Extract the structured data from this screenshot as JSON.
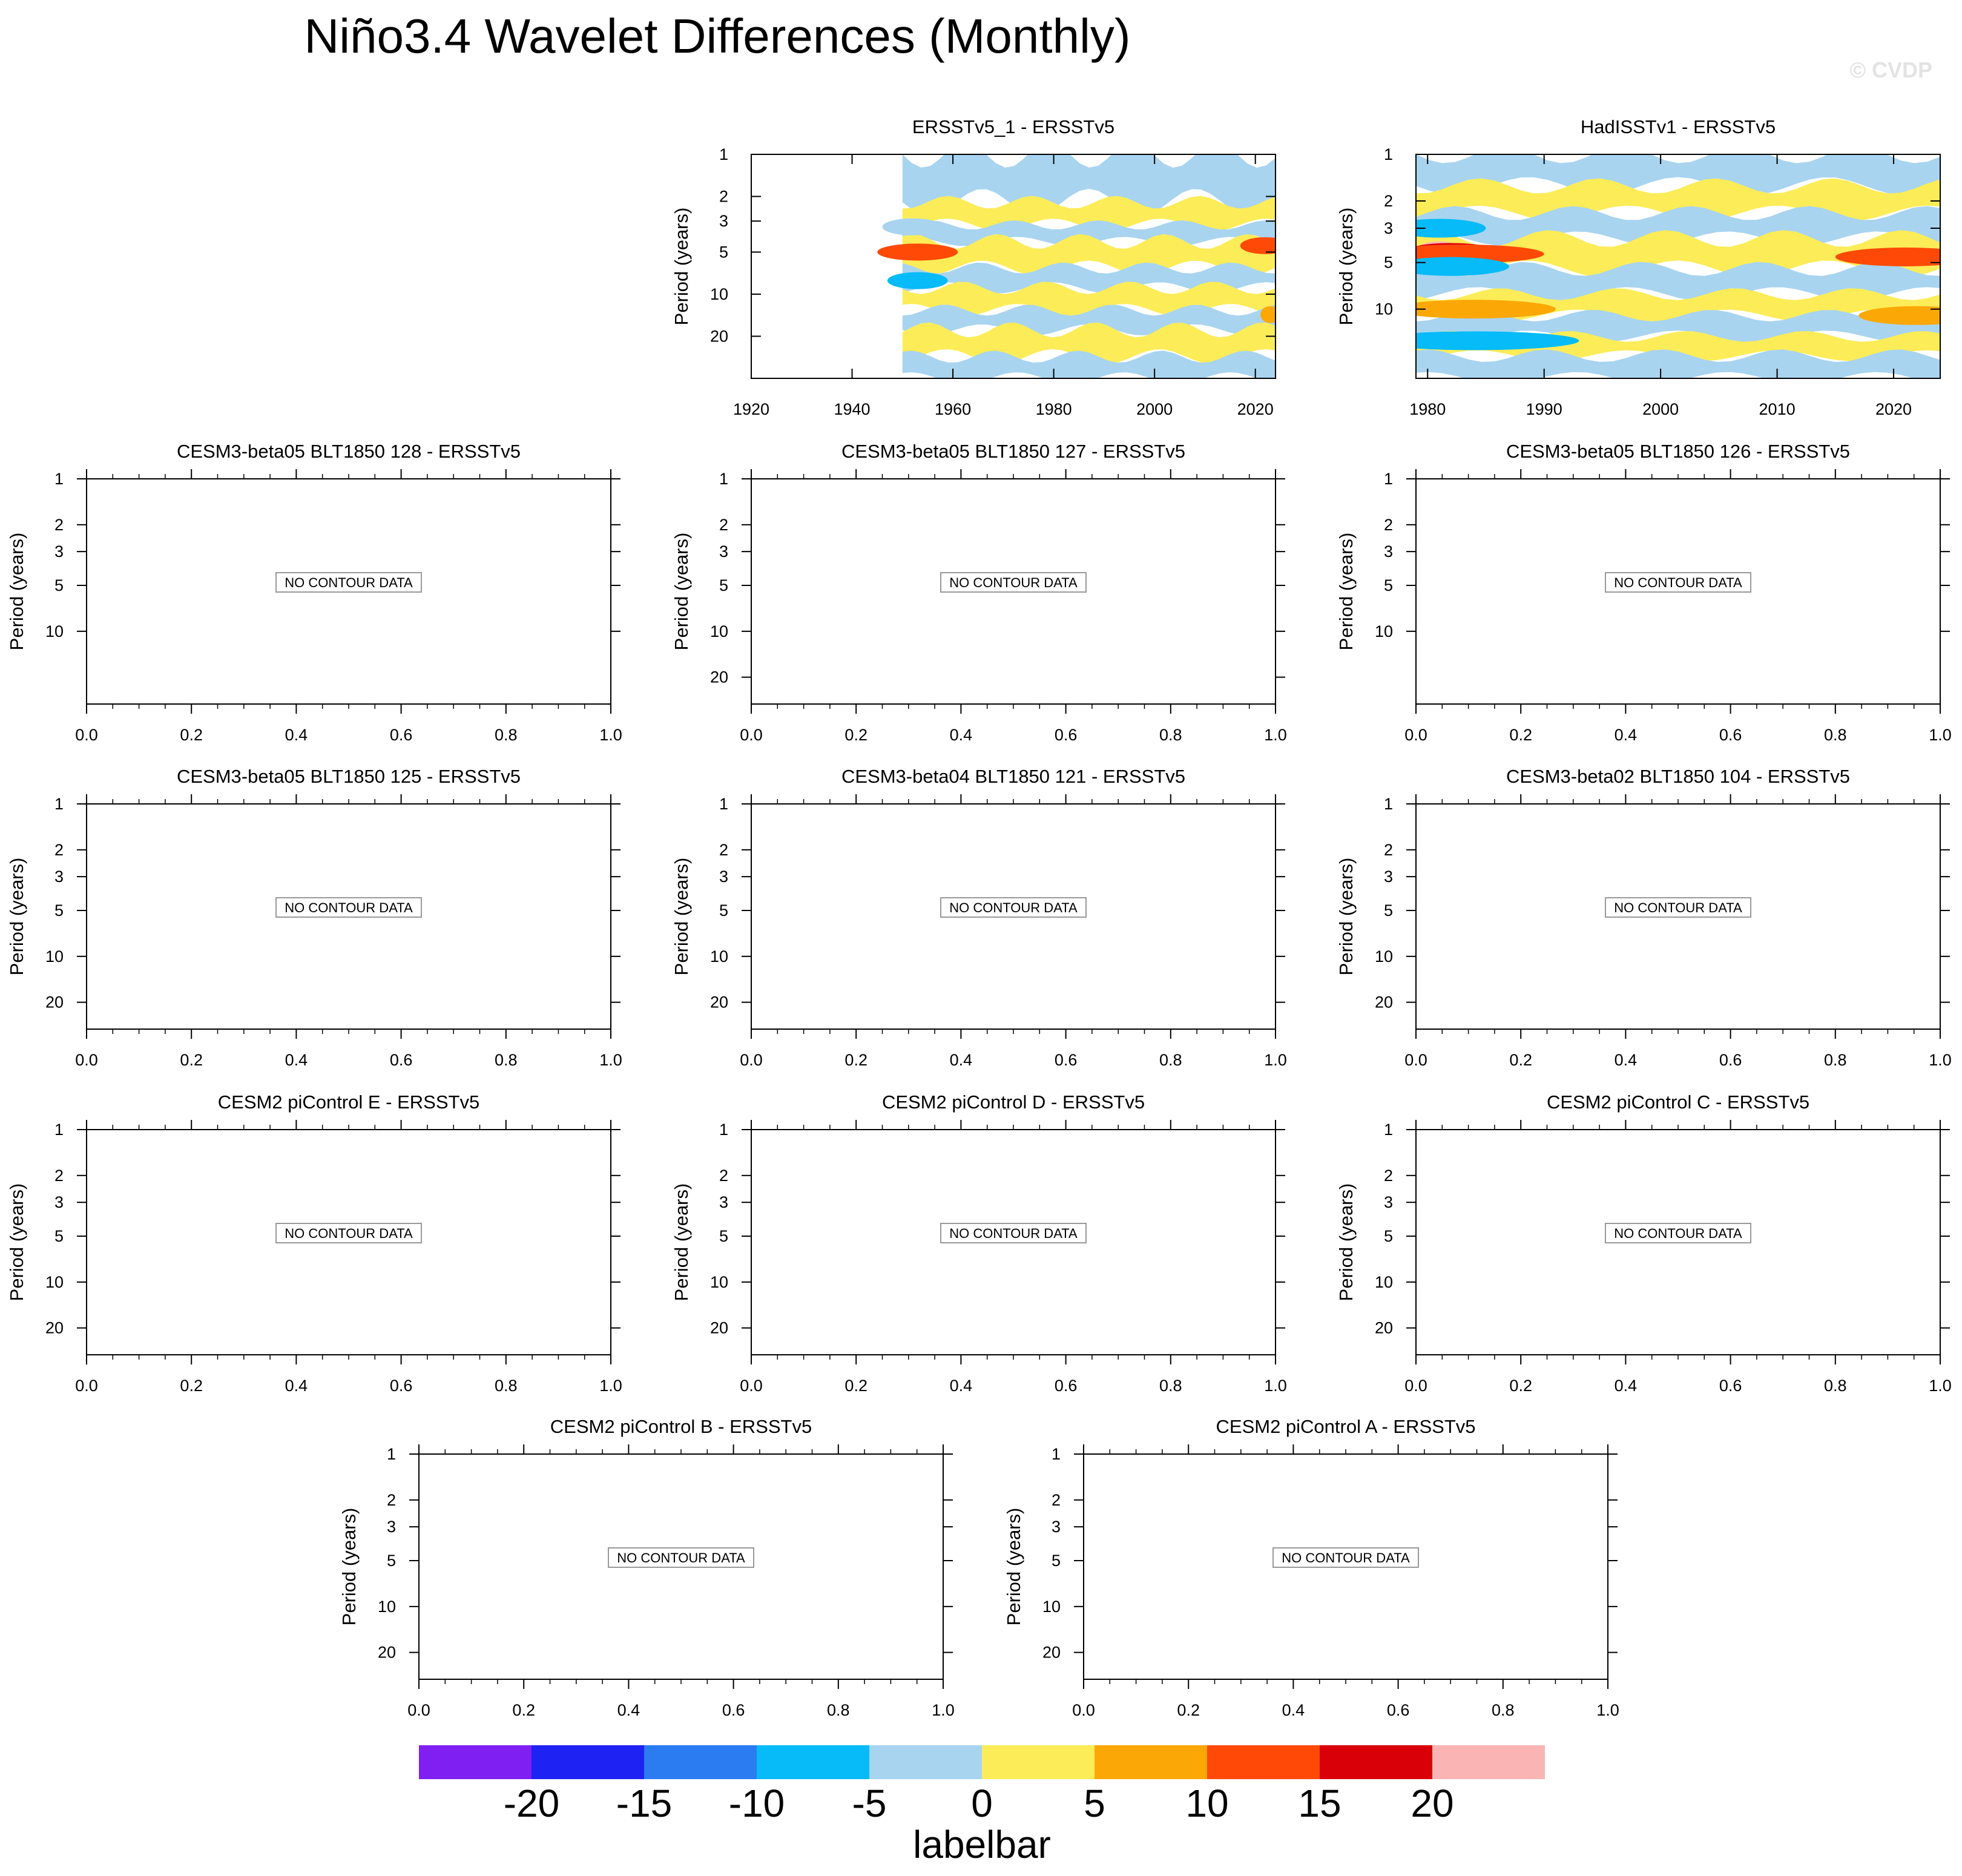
{
  "page": {
    "title": "Niño3.4 Wavelet Differences (Monthly)",
    "watermark": "© CVDP"
  },
  "colors": {
    "levels": [
      "#7f1ff2",
      "#1e22f2",
      "#2b7cf0",
      "#06bbf7",
      "#a8d4f0",
      "#fcec58",
      "#fba806",
      "#fe4a06",
      "#d90007",
      "#fab4b4"
    ],
    "frame": "#000000",
    "nocontour_border": "#999999"
  },
  "chart_data": [
    {
      "type": "heatmap",
      "id": "ersst1",
      "title": "ERSSTv5_1 - ERSSTv5",
      "ylabel": "Period (years)",
      "xlim": [
        1920,
        2024
      ],
      "data_start": 1950,
      "ylim": [
        1,
        40
      ],
      "ylog": true,
      "xticks": [
        1920,
        1940,
        1960,
        1980,
        2000,
        2020
      ],
      "yticks": [
        1,
        2,
        3,
        5,
        10,
        20
      ],
      "note": "banded difference field; bands listed as [period_low, period_high, color_index]",
      "bands": [
        [
          1,
          2.2,
          4
        ],
        [
          2.2,
          3.2,
          5
        ],
        [
          3.2,
          4.2,
          4
        ],
        [
          4.2,
          6.5,
          5
        ],
        [
          6.5,
          9,
          4
        ],
        [
          9,
          13,
          5
        ],
        [
          13,
          18,
          4
        ],
        [
          18,
          28,
          5
        ],
        [
          28,
          40,
          4
        ]
      ],
      "blobs": [
        {
          "x": 1953,
          "p": 5.0,
          "c": 7,
          "w": 8
        },
        {
          "x": 1953,
          "p": 8.0,
          "c": 3,
          "w": 6
        },
        {
          "x": 1952,
          "p": 3.3,
          "c": 4,
          "w": 6
        },
        {
          "x": 2022,
          "p": 4.5,
          "c": 7,
          "w": 5
        },
        {
          "x": 2023,
          "p": 14,
          "c": 6,
          "w": 2
        }
      ]
    },
    {
      "type": "heatmap",
      "id": "hadisst",
      "title": "HadISSTv1 - ERSSTv5",
      "ylabel": "Period (years)",
      "xlim": [
        1979,
        2024
      ],
      "ylim": [
        1,
        28
      ],
      "ylog": true,
      "xticks": [
        1980,
        1990,
        2000,
        2010,
        2020
      ],
      "yticks": [
        1,
        2,
        3,
        5,
        10
      ],
      "bands": [
        [
          1,
          1.6,
          4
        ],
        [
          1.6,
          2.4,
          5
        ],
        [
          2.4,
          3.5,
          4
        ],
        [
          3.5,
          5.5,
          5
        ],
        [
          5.5,
          8,
          4
        ],
        [
          8,
          11,
          5
        ],
        [
          11,
          15,
          4
        ],
        [
          15,
          20,
          5
        ],
        [
          20,
          28,
          4
        ]
      ],
      "blobs": [
        {
          "x": 1981,
          "p": 4.2,
          "c": 9,
          "w": 2
        },
        {
          "x": 1982,
          "p": 4.3,
          "c": 8,
          "w": 4
        },
        {
          "x": 1983,
          "p": 4.4,
          "c": 7,
          "w": 7
        },
        {
          "x": 1981,
          "p": 3.0,
          "c": 3,
          "w": 4
        },
        {
          "x": 1982,
          "p": 5.3,
          "c": 3,
          "w": 5
        },
        {
          "x": 1984,
          "p": 10,
          "c": 6,
          "w": 7
        },
        {
          "x": 1984,
          "p": 16,
          "c": 3,
          "w": 9
        },
        {
          "x": 2021,
          "p": 4.6,
          "c": 7,
          "w": 6
        },
        {
          "x": 2022,
          "p": 11,
          "c": 6,
          "w": 5
        }
      ]
    },
    {
      "type": "empty",
      "title": "CESM3-beta05 BLT1850 128 - ERSSTv5",
      "ylabel": "Period (years)",
      "xticks": [
        "0.0",
        "0.2",
        "0.4",
        "0.6",
        "0.8",
        "1.0"
      ],
      "yticks": [
        "1",
        "2",
        "3",
        "5",
        "10"
      ],
      "message": "NO CONTOUR DATA"
    },
    {
      "type": "empty",
      "title": "CESM3-beta05 BLT1850 127 - ERSSTv5",
      "ylabel": "Period (years)",
      "xticks": [
        "0.0",
        "0.2",
        "0.4",
        "0.6",
        "0.8",
        "1.0"
      ],
      "yticks": [
        "1",
        "2",
        "3",
        "5",
        "10",
        "20"
      ],
      "message": "NO CONTOUR DATA"
    },
    {
      "type": "empty",
      "title": "CESM3-beta05 BLT1850 126 - ERSSTv5",
      "ylabel": "Period (years)",
      "xticks": [
        "0.0",
        "0.2",
        "0.4",
        "0.6",
        "0.8",
        "1.0"
      ],
      "yticks": [
        "1",
        "2",
        "3",
        "5",
        "10"
      ],
      "message": "NO CONTOUR DATA"
    },
    {
      "type": "empty",
      "title": "CESM3-beta05 BLT1850 125 - ERSSTv5",
      "ylabel": "Period (years)",
      "xticks": [
        "0.0",
        "0.2",
        "0.4",
        "0.6",
        "0.8",
        "1.0"
      ],
      "yticks": [
        "1",
        "2",
        "3",
        "5",
        "10",
        "20"
      ],
      "message": "NO CONTOUR DATA"
    },
    {
      "type": "empty",
      "title": "CESM3-beta04 BLT1850 121 - ERSSTv5",
      "ylabel": "Period (years)",
      "xticks": [
        "0.0",
        "0.2",
        "0.4",
        "0.6",
        "0.8",
        "1.0"
      ],
      "yticks": [
        "1",
        "2",
        "3",
        "5",
        "10",
        "20"
      ],
      "message": "NO CONTOUR DATA"
    },
    {
      "type": "empty",
      "title": "CESM3-beta02 BLT1850 104 - ERSSTv5",
      "ylabel": "Period (years)",
      "xticks": [
        "0.0",
        "0.2",
        "0.4",
        "0.6",
        "0.8",
        "1.0"
      ],
      "yticks": [
        "1",
        "2",
        "3",
        "5",
        "10",
        "20"
      ],
      "message": "NO CONTOUR DATA"
    },
    {
      "type": "empty",
      "title": "CESM2 piControl E - ERSSTv5",
      "ylabel": "Period (years)",
      "xticks": [
        "0.0",
        "0.2",
        "0.4",
        "0.6",
        "0.8",
        "1.0"
      ],
      "yticks": [
        "1",
        "2",
        "3",
        "5",
        "10",
        "20"
      ],
      "message": "NO CONTOUR DATA"
    },
    {
      "type": "empty",
      "title": "CESM2 piControl D - ERSSTv5",
      "ylabel": "Period (years)",
      "xticks": [
        "0.0",
        "0.2",
        "0.4",
        "0.6",
        "0.8",
        "1.0"
      ],
      "yticks": [
        "1",
        "2",
        "3",
        "5",
        "10",
        "20"
      ],
      "message": "NO CONTOUR DATA"
    },
    {
      "type": "empty",
      "title": "CESM2 piControl C - ERSSTv5",
      "ylabel": "Period (years)",
      "xticks": [
        "0.0",
        "0.2",
        "0.4",
        "0.6",
        "0.8",
        "1.0"
      ],
      "yticks": [
        "1",
        "2",
        "3",
        "5",
        "10",
        "20"
      ],
      "message": "NO CONTOUR DATA"
    },
    {
      "type": "empty",
      "title": "CESM2 piControl B - ERSSTv5",
      "ylabel": "Period (years)",
      "xticks": [
        "0.0",
        "0.2",
        "0.4",
        "0.6",
        "0.8",
        "1.0"
      ],
      "yticks": [
        "1",
        "2",
        "3",
        "5",
        "10",
        "20"
      ],
      "message": "NO CONTOUR DATA"
    },
    {
      "type": "empty",
      "title": "CESM2 piControl A - ERSSTv5",
      "ylabel": "Period (years)",
      "xticks": [
        "0.0",
        "0.2",
        "0.4",
        "0.6",
        "0.8",
        "1.0"
      ],
      "yticks": [
        "1",
        "2",
        "3",
        "5",
        "10",
        "20"
      ],
      "message": "NO CONTOUR DATA"
    }
  ],
  "labelbar": {
    "title": "labelbar",
    "labels": [
      "-20",
      "-15",
      "-10",
      "-5",
      "0",
      "5",
      "10",
      "15",
      "20"
    ]
  }
}
